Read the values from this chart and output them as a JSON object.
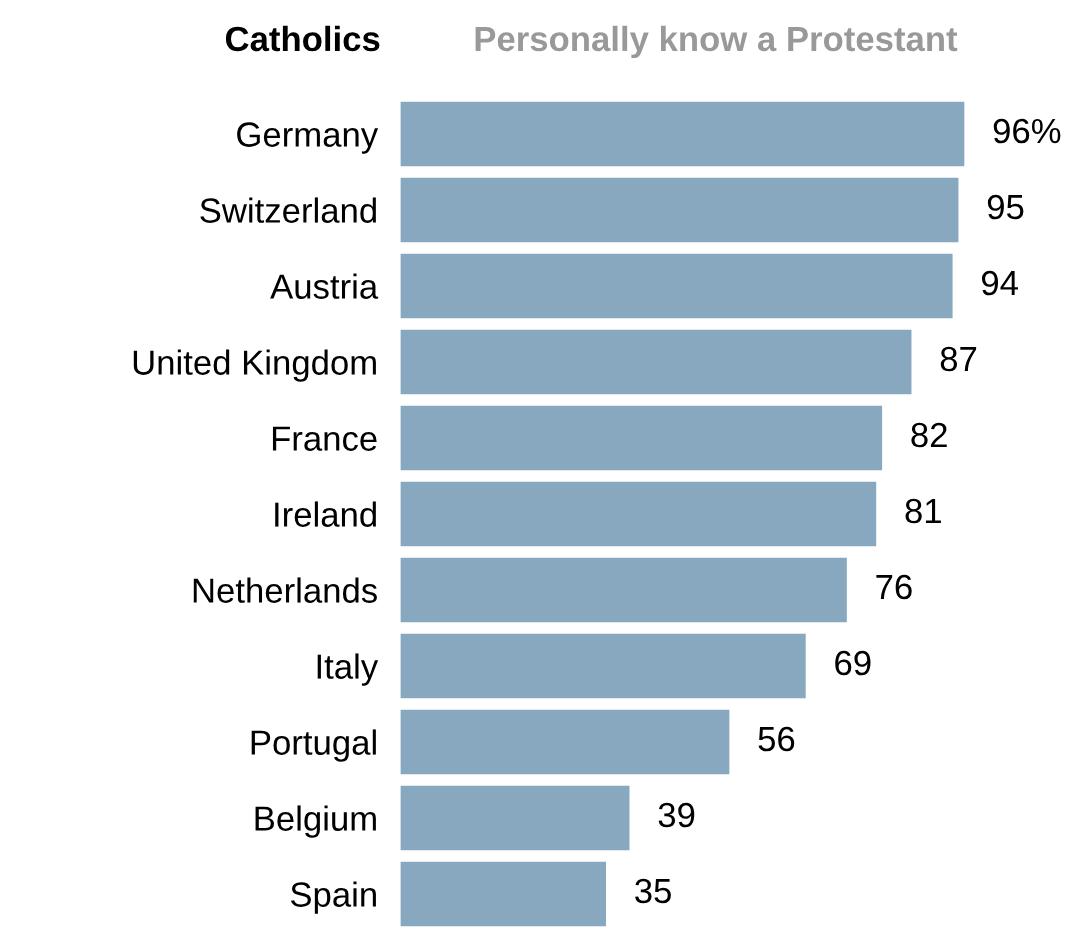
{
  "chart_data": {
    "type": "bar",
    "orientation": "horizontal",
    "title": "Catholics",
    "subtitle": "Personally know a Protestant",
    "categories": [
      "Germany",
      "Switzerland",
      "Austria",
      "United Kingdom",
      "France",
      "Ireland",
      "Netherlands",
      "Italy",
      "Portugal",
      "Belgium",
      "Spain"
    ],
    "values": [
      96,
      95,
      94,
      87,
      82,
      81,
      76,
      69,
      56,
      39,
      35
    ],
    "value_labels": [
      "96%",
      "95",
      "94",
      "87",
      "82",
      "81",
      "76",
      "69",
      "56",
      "39",
      "35"
    ],
    "color": "#87a8bf",
    "grid": false,
    "legend": false
  }
}
